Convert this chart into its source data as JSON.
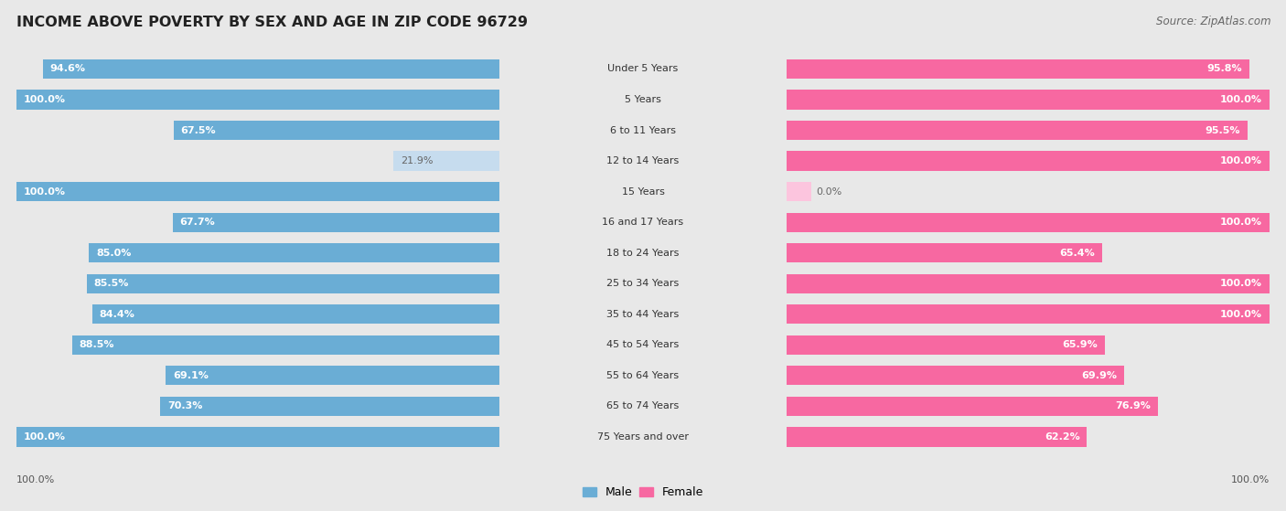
{
  "title": "INCOME ABOVE POVERTY BY SEX AND AGE IN ZIP CODE 96729",
  "source": "Source: ZipAtlas.com",
  "categories": [
    "Under 5 Years",
    "5 Years",
    "6 to 11 Years",
    "12 to 14 Years",
    "15 Years",
    "16 and 17 Years",
    "18 to 24 Years",
    "25 to 34 Years",
    "35 to 44 Years",
    "45 to 54 Years",
    "55 to 64 Years",
    "65 to 74 Years",
    "75 Years and over"
  ],
  "male_values": [
    94.6,
    100.0,
    67.5,
    21.9,
    100.0,
    67.7,
    85.0,
    85.5,
    84.4,
    88.5,
    69.1,
    70.3,
    100.0
  ],
  "female_values": [
    95.8,
    100.0,
    95.5,
    100.0,
    0.0,
    100.0,
    65.4,
    100.0,
    100.0,
    65.9,
    69.9,
    76.9,
    62.2
  ],
  "male_color": "#6aadd5",
  "female_color": "#f768a1",
  "male_color_light": "#c6dcee",
  "female_color_light": "#fcc5de",
  "male_label": "Male",
  "female_label": "Female",
  "background_color": "#e8e8e8",
  "row_bg_color": "#ffffff",
  "title_fontsize": 11.5,
  "source_fontsize": 8.5,
  "label_fontsize": 8,
  "category_fontsize": 8,
  "axis_bottom_label": "100.0%"
}
